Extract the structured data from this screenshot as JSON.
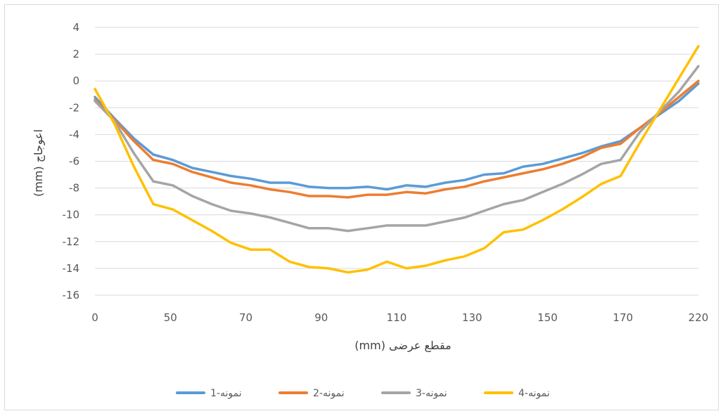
{
  "chart_data": {
    "type": "line",
    "title": "",
    "xlabel": "مقطع عرضی (mm)",
    "ylabel": "اعوجاج (mm)",
    "x_tick_labels": [
      "0",
      "50",
      "70",
      "90",
      "110",
      "130",
      "150",
      "170",
      "220"
    ],
    "y_tick_labels": [
      "4",
      "2",
      "0",
      "-2",
      "-4",
      "-6",
      "-8",
      "-10",
      "-12",
      "-14",
      "-16"
    ],
    "ylim": [
      -16,
      4
    ],
    "grid": "horizontal",
    "legend_position": "bottom",
    "series": [
      {
        "name": "نمونه-1",
        "color": "#5b9bd5",
        "values": [
          -1.2,
          -2.8,
          -4.3,
          -5.5,
          -5.9,
          -6.5,
          -6.8,
          -7.1,
          -7.3,
          -7.6,
          -7.6,
          -7.9,
          -8.0,
          -8.0,
          -7.9,
          -8.1,
          -7.8,
          -7.9,
          -7.6,
          -7.4,
          -7.0,
          -6.9,
          -6.4,
          -6.2,
          -5.8,
          -5.4,
          -4.9,
          -4.5,
          -3.5,
          -2.5,
          -1.5,
          -0.2
        ]
      },
      {
        "name": "نمونه-2",
        "color": "#ed7d31",
        "values": [
          -1.4,
          -2.9,
          -4.5,
          -5.9,
          -6.2,
          -6.8,
          -7.2,
          -7.6,
          -7.8,
          -8.1,
          -8.3,
          -8.6,
          -8.6,
          -8.7,
          -8.5,
          -8.5,
          -8.3,
          -8.4,
          -8.1,
          -7.9,
          -7.5,
          -7.2,
          -6.9,
          -6.6,
          -6.2,
          -5.7,
          -5.0,
          -4.7,
          -3.5,
          -2.4,
          -1.2,
          0.0
        ]
      },
      {
        "name": "نمونه-3",
        "color": "#a5a5a5",
        "values": [
          -1.5,
          -3.0,
          -5.4,
          -7.5,
          -7.8,
          -8.6,
          -9.2,
          -9.7,
          -9.9,
          -10.2,
          -10.6,
          -11.0,
          -11.0,
          -11.2,
          -11.0,
          -10.8,
          -10.8,
          -10.8,
          -10.5,
          -10.2,
          -9.7,
          -9.2,
          -8.9,
          -8.3,
          -7.7,
          -7.0,
          -6.2,
          -5.9,
          -3.8,
          -2.3,
          -0.8,
          1.1
        ]
      },
      {
        "name": "نمونه-4",
        "color": "#ffc000",
        "values": [
          -0.6,
          -3.2,
          -6.4,
          -9.2,
          -9.6,
          -10.4,
          -11.2,
          -12.1,
          -12.6,
          -12.6,
          -13.5,
          -13.9,
          -14.0,
          -14.3,
          -14.1,
          -13.5,
          -14.0,
          -13.8,
          -13.4,
          -13.1,
          -12.5,
          -11.3,
          -11.1,
          -10.4,
          -9.6,
          -8.7,
          -7.7,
          -7.1,
          -4.6,
          -2.2,
          0.2,
          2.6
        ]
      }
    ]
  }
}
